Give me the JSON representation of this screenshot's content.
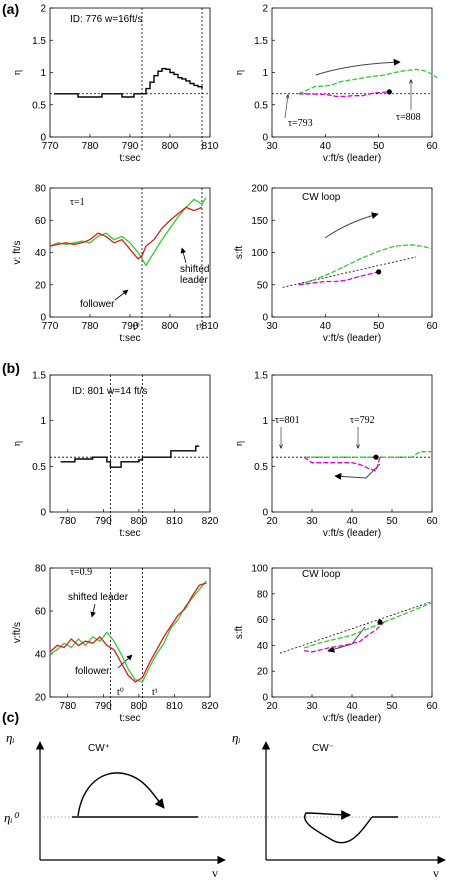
{
  "panel_labels": [
    "(a)",
    "(b)",
    "(c)"
  ],
  "colors": {
    "black": "#000000",
    "green": "#33cc33",
    "magenta": "#e000e0",
    "red": "#e01a1a",
    "dotted": "#555555"
  },
  "chart_data": [
    {
      "id": "a1",
      "type": "line",
      "xlabel": "t:sec",
      "ylabel": "η",
      "xlim": [
        770,
        810
      ],
      "ylim": [
        0,
        2
      ],
      "xticks": [
        770,
        780,
        790,
        800,
        810
      ],
      "yticks": [
        0,
        0.5,
        1,
        1.5,
        2
      ],
      "ytick_labels": [
        "0",
        "0.5",
        "1",
        "1.5",
        "2"
      ],
      "annotations": [
        "ID: 776 w=16ft/s"
      ],
      "hline": 0.67,
      "vlines": [
        793,
        808
      ],
      "series": [
        {
          "color": "black",
          "x": [
            771,
            776,
            777,
            782,
            783,
            787,
            788,
            790,
            791,
            792,
            793,
            794,
            795,
            796,
            797,
            798,
            799,
            800,
            801,
            802,
            803,
            804,
            805,
            806,
            807,
            808
          ],
          "y": [
            0.67,
            0.67,
            0.62,
            0.62,
            0.67,
            0.67,
            0.62,
            0.62,
            0.67,
            0.67,
            0.67,
            0.75,
            0.85,
            0.95,
            1.02,
            1.06,
            1.05,
            1.0,
            0.97,
            0.92,
            0.9,
            0.87,
            0.83,
            0.8,
            0.78,
            0.75
          ]
        }
      ]
    },
    {
      "id": "a2",
      "type": "line",
      "xlabel": "v:ft/s (leader)",
      "ylabel": "η",
      "xlim": [
        30,
        60
      ],
      "ylim": [
        0,
        2
      ],
      "xticks": [
        30,
        40,
        50,
        60
      ],
      "yticks": [
        0,
        0.5,
        1,
        1.5,
        2
      ],
      "ytick_labels": [
        "0",
        "0.5",
        "1",
        "1.5",
        "2"
      ],
      "annotations": [
        "τ=793",
        "τ=808"
      ],
      "hline": 0.67,
      "series": [
        {
          "color": "green",
          "dashed": true,
          "x": [
            35,
            38,
            41,
            43,
            46,
            48,
            51,
            53,
            55,
            57,
            59,
            61
          ],
          "y": [
            0.67,
            0.78,
            0.8,
            0.86,
            0.9,
            0.93,
            0.96,
            1.0,
            1.03,
            1.05,
            1.02,
            0.92
          ]
        },
        {
          "color": "magenta",
          "dashed": true,
          "x": [
            35,
            40,
            42,
            44,
            45,
            47,
            49,
            52
          ],
          "y": [
            0.67,
            0.66,
            0.63,
            0.63,
            0.64,
            0.64,
            0.68,
            0.7
          ]
        }
      ],
      "points": [
        {
          "x": 52,
          "y": 0.7
        }
      ]
    },
    {
      "id": "a3",
      "type": "line",
      "xlabel": "t:sec",
      "ylabel": "v: ft/s",
      "xlim": [
        770,
        810
      ],
      "ylim": [
        0,
        80
      ],
      "xticks": [
        770,
        780,
        790,
        800,
        810
      ],
      "yticks": [
        0,
        20,
        40,
        60,
        80
      ],
      "ytick_labels": [
        "0",
        "20",
        "40",
        "60",
        "80"
      ],
      "annotations": [
        "τ=1",
        "follower",
        "shifted leader",
        "t⁰",
        "t¹"
      ],
      "vlines": [
        793,
        808
      ],
      "series": [
        {
          "name": "follower",
          "color": "green",
          "x": [
            770,
            772,
            774,
            776,
            778,
            780,
            782,
            784,
            786,
            788,
            790,
            792,
            793,
            794,
            796,
            798,
            800,
            802,
            804,
            806,
            808,
            809
          ],
          "y": [
            44,
            46,
            45,
            46,
            47,
            46,
            50,
            52,
            48,
            50,
            46,
            40,
            36,
            32,
            40,
            48,
            55,
            62,
            68,
            73,
            70,
            74
          ]
        },
        {
          "name": "shifted leader",
          "color": "red",
          "x": [
            770,
            772,
            774,
            776,
            778,
            780,
            782,
            784,
            786,
            788,
            790,
            792,
            793,
            794,
            796,
            798,
            800,
            802,
            804,
            806,
            808
          ],
          "y": [
            44,
            45,
            46,
            45,
            46,
            48,
            52,
            50,
            46,
            48,
            42,
            36,
            38,
            44,
            48,
            55,
            60,
            64,
            68,
            66,
            68
          ]
        }
      ]
    },
    {
      "id": "a4",
      "type": "line",
      "xlabel": "v:ft/s (leader)",
      "ylabel": "s:ft",
      "xlim": [
        30,
        60
      ],
      "ylim": [
        0,
        200
      ],
      "xticks": [
        30,
        40,
        50,
        60
      ],
      "yticks": [
        0,
        50,
        100,
        150,
        200
      ],
      "ytick_labels": [
        "0",
        "50",
        "100",
        "150",
        "200"
      ],
      "annotations": [
        "CW loop"
      ],
      "dashed_line": [
        [
          32,
          46
        ],
        [
          57,
          93
        ]
      ],
      "series": [
        {
          "color": "green",
          "dashed": true,
          "x": [
            35,
            38,
            41,
            44,
            47,
            50,
            53,
            56,
            58,
            60
          ],
          "y": [
            50,
            58,
            68,
            80,
            92,
            102,
            110,
            112,
            110,
            106
          ]
        },
        {
          "color": "magenta",
          "dashed": true,
          "x": [
            35,
            38,
            40,
            42,
            44,
            46,
            48,
            50
          ],
          "y": [
            50,
            53,
            55,
            55,
            57,
            62,
            66,
            70
          ]
        }
      ],
      "points": [
        {
          "x": 50,
          "y": 70
        }
      ]
    },
    {
      "id": "b1",
      "type": "line",
      "xlabel": "t:sec",
      "ylabel": "η",
      "xlim": [
        775,
        820
      ],
      "ylim": [
        0,
        1.5
      ],
      "xticks": [
        780,
        790,
        800,
        810,
        820
      ],
      "yticks": [
        0,
        0.5,
        1,
        1.5
      ],
      "ytick_labels": [
        "0",
        "0.5",
        "1",
        "1.5"
      ],
      "annotations": [
        "ID: 801 w=14 ft/s"
      ],
      "hline": 0.6,
      "vlines": [
        792,
        801
      ],
      "series": [
        {
          "color": "black",
          "x": [
            778,
            781,
            782,
            786,
            787,
            791,
            792,
            794,
            795,
            799,
            800,
            801,
            802,
            808,
            809,
            815,
            816,
            817
          ],
          "y": [
            0.55,
            0.55,
            0.58,
            0.58,
            0.6,
            0.55,
            0.49,
            0.49,
            0.55,
            0.55,
            0.57,
            0.6,
            0.6,
            0.6,
            0.67,
            0.67,
            0.72,
            0.72
          ]
        }
      ]
    },
    {
      "id": "b2",
      "type": "line",
      "xlabel": "v:ft/s (leader)",
      "ylabel": "η",
      "xlim": [
        20,
        60
      ],
      "ylim": [
        0,
        1.5
      ],
      "xticks": [
        20,
        30,
        40,
        50,
        60
      ],
      "yticks": [
        0,
        0.5,
        1,
        1.5
      ],
      "ytick_labels": [
        "0",
        "0.5",
        "1",
        "1.5"
      ],
      "annotations": [
        "τ=801",
        "τ=792"
      ],
      "hline": 0.6,
      "series": [
        {
          "color": "green",
          "dashed": true,
          "x": [
            28,
            35,
            40,
            45,
            50,
            55,
            57,
            60
          ],
          "y": [
            0.6,
            0.6,
            0.6,
            0.6,
            0.6,
            0.6,
            0.66,
            0.66
          ]
        },
        {
          "color": "magenta",
          "dashed": true,
          "x": [
            28,
            30,
            35,
            40,
            42,
            44,
            46,
            47
          ],
          "y": [
            0.6,
            0.54,
            0.54,
            0.54,
            0.52,
            0.48,
            0.45,
            0.6
          ]
        }
      ],
      "points": [
        {
          "x": 46,
          "y": 0.6
        }
      ]
    },
    {
      "id": "b3",
      "type": "line",
      "xlabel": "t:sec",
      "ylabel": "v:ft/s",
      "xlim": [
        775,
        820
      ],
      "ylim": [
        20,
        80
      ],
      "xticks": [
        780,
        790,
        800,
        810,
        820
      ],
      "yticks": [
        20,
        40,
        60,
        80
      ],
      "ytick_labels": [
        "20",
        "40",
        "60",
        "80"
      ],
      "annotations": [
        "τ=0.9",
        "shifted leader",
        "follower",
        "t⁰",
        "t¹"
      ],
      "vlines": [
        792,
        801
      ],
      "series": [
        {
          "name": "follower",
          "color": "green",
          "x": [
            775,
            777,
            779,
            781,
            783,
            785,
            787,
            789,
            791,
            793,
            795,
            797,
            799,
            801,
            803,
            805,
            807,
            809,
            811,
            813,
            815,
            817,
            819
          ],
          "y": [
            40,
            42,
            45,
            43,
            47,
            44,
            48,
            46,
            50,
            46,
            40,
            33,
            28,
            27,
            34,
            40,
            45,
            52,
            56,
            62,
            66,
            70,
            74
          ]
        },
        {
          "name": "shifted leader",
          "color": "red",
          "x": [
            775,
            777,
            779,
            781,
            783,
            785,
            787,
            789,
            791,
            793,
            795,
            797,
            799,
            801,
            803,
            805,
            807,
            809,
            811,
            813,
            815,
            817,
            819
          ],
          "y": [
            41,
            44,
            43,
            47,
            44,
            46,
            45,
            48,
            44,
            42,
            36,
            30,
            27,
            29,
            36,
            42,
            48,
            53,
            58,
            61,
            67,
            72,
            73
          ]
        }
      ]
    },
    {
      "id": "b4",
      "type": "line",
      "xlabel": "v:ft/s (leader)",
      "ylabel": "s:ft",
      "xlim": [
        20,
        60
      ],
      "ylim": [
        0,
        100
      ],
      "xticks": [
        20,
        30,
        40,
        50,
        60
      ],
      "yticks": [
        0,
        20,
        40,
        60,
        80,
        100
      ],
      "ytick_labels": [
        "0",
        "20",
        "40",
        "60",
        "80",
        "100"
      ],
      "annotations": [
        "CW loop"
      ],
      "dashed_line": [
        [
          22,
          34
        ],
        [
          60,
          74
        ]
      ],
      "series": [
        {
          "color": "green",
          "dashed": true,
          "x": [
            28,
            32,
            36,
            40,
            44,
            48,
            52,
            56,
            60
          ],
          "y": [
            38,
            42,
            45,
            48,
            53,
            58,
            63,
            68,
            73
          ]
        },
        {
          "color": "magenta",
          "dashed": true,
          "x": [
            28,
            30,
            34,
            38,
            42,
            44,
            46,
            48
          ],
          "y": [
            36,
            35,
            38,
            40,
            43,
            48,
            52,
            58
          ]
        }
      ],
      "points": [
        {
          "x": 47,
          "y": 58
        }
      ]
    },
    {
      "id": "c1",
      "type": "schematic",
      "xlabel": "v",
      "ylabel": "ηᵢ",
      "ytick_labels": [
        "ηᵢ⁰"
      ],
      "annotations": [
        "CW⁺"
      ]
    },
    {
      "id": "c2",
      "type": "schematic",
      "xlabel": "v",
      "ylabel": "ηᵢ",
      "annotations": [
        "CW⁻"
      ]
    }
  ]
}
